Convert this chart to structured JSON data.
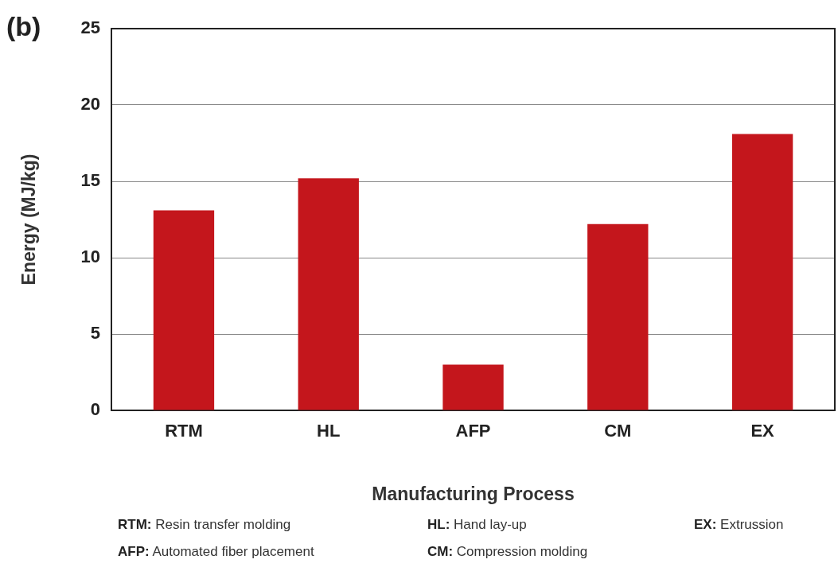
{
  "chart_data": {
    "type": "bar",
    "title": "(b)",
    "xlabel": "Manufacturing Process",
    "ylabel": "Energy (MJ/kg)",
    "categories": [
      "RTM",
      "HL",
      "AFP",
      "CM",
      "EX"
    ],
    "values": [
      13.1,
      15.2,
      3.0,
      12.2,
      18.1
    ],
    "color": "#c4161c",
    "ylim": [
      0,
      25
    ],
    "yticks": [
      0,
      5,
      10,
      15,
      20,
      25
    ],
    "grid": "y",
    "annotations": [
      "RTM: Resin transfer molding",
      "HL: Hand lay-up",
      "EX: Extrussion",
      "AFP: Automated fiber placement",
      "CM: Compression molding"
    ]
  }
}
